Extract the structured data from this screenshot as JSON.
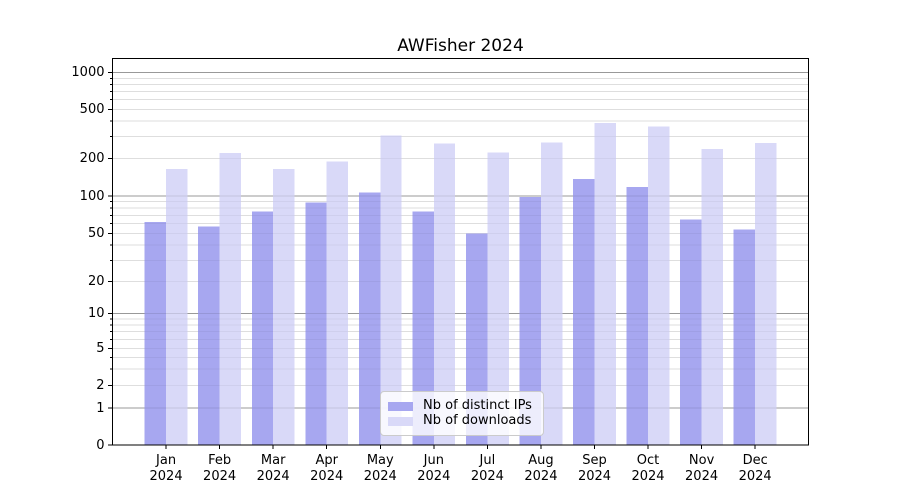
{
  "chart_data": {
    "type": "bar",
    "title": "AWFisher 2024",
    "x_year": "2024",
    "x_months": [
      "Jan",
      "Feb",
      "Mar",
      "Apr",
      "May",
      "Jun",
      "Jul",
      "Aug",
      "Sep",
      "Oct",
      "Nov",
      "Dec"
    ],
    "series": [
      {
        "name": "Nb of distinct IPs",
        "color": "#a7a7f0",
        "values": [
          62,
          57,
          75,
          89,
          107,
          75,
          50,
          98,
          137,
          118,
          65,
          54
        ]
      },
      {
        "name": "Nb of downloads",
        "color": "#d9d9f8",
        "values": [
          165,
          220,
          165,
          188,
          305,
          263,
          222,
          270,
          388,
          362,
          237,
          267
        ]
      }
    ],
    "y_ticks": [
      {
        "v": 1000,
        "label": "1000"
      },
      {
        "v": 500,
        "label": "500"
      },
      {
        "v": 200,
        "label": "200"
      },
      {
        "v": 100,
        "label": "100"
      },
      {
        "v": 50,
        "label": "50"
      },
      {
        "v": 20,
        "label": "20"
      },
      {
        "v": 10,
        "label": "10"
      },
      {
        "v": 5,
        "label": "5"
      },
      {
        "v": 2,
        "label": "2"
      },
      {
        "v": 1,
        "label": "1"
      },
      {
        "v": 0,
        "label": "0"
      }
    ],
    "y_scale": "symlog",
    "ylim": [
      0,
      1300
    ],
    "grid": true,
    "legend_position": "lower center",
    "colors": {
      "major_grid": "#ababab",
      "minor_grid": "#e8e8e8",
      "axis": "#000000",
      "background": "#ffffff"
    }
  }
}
